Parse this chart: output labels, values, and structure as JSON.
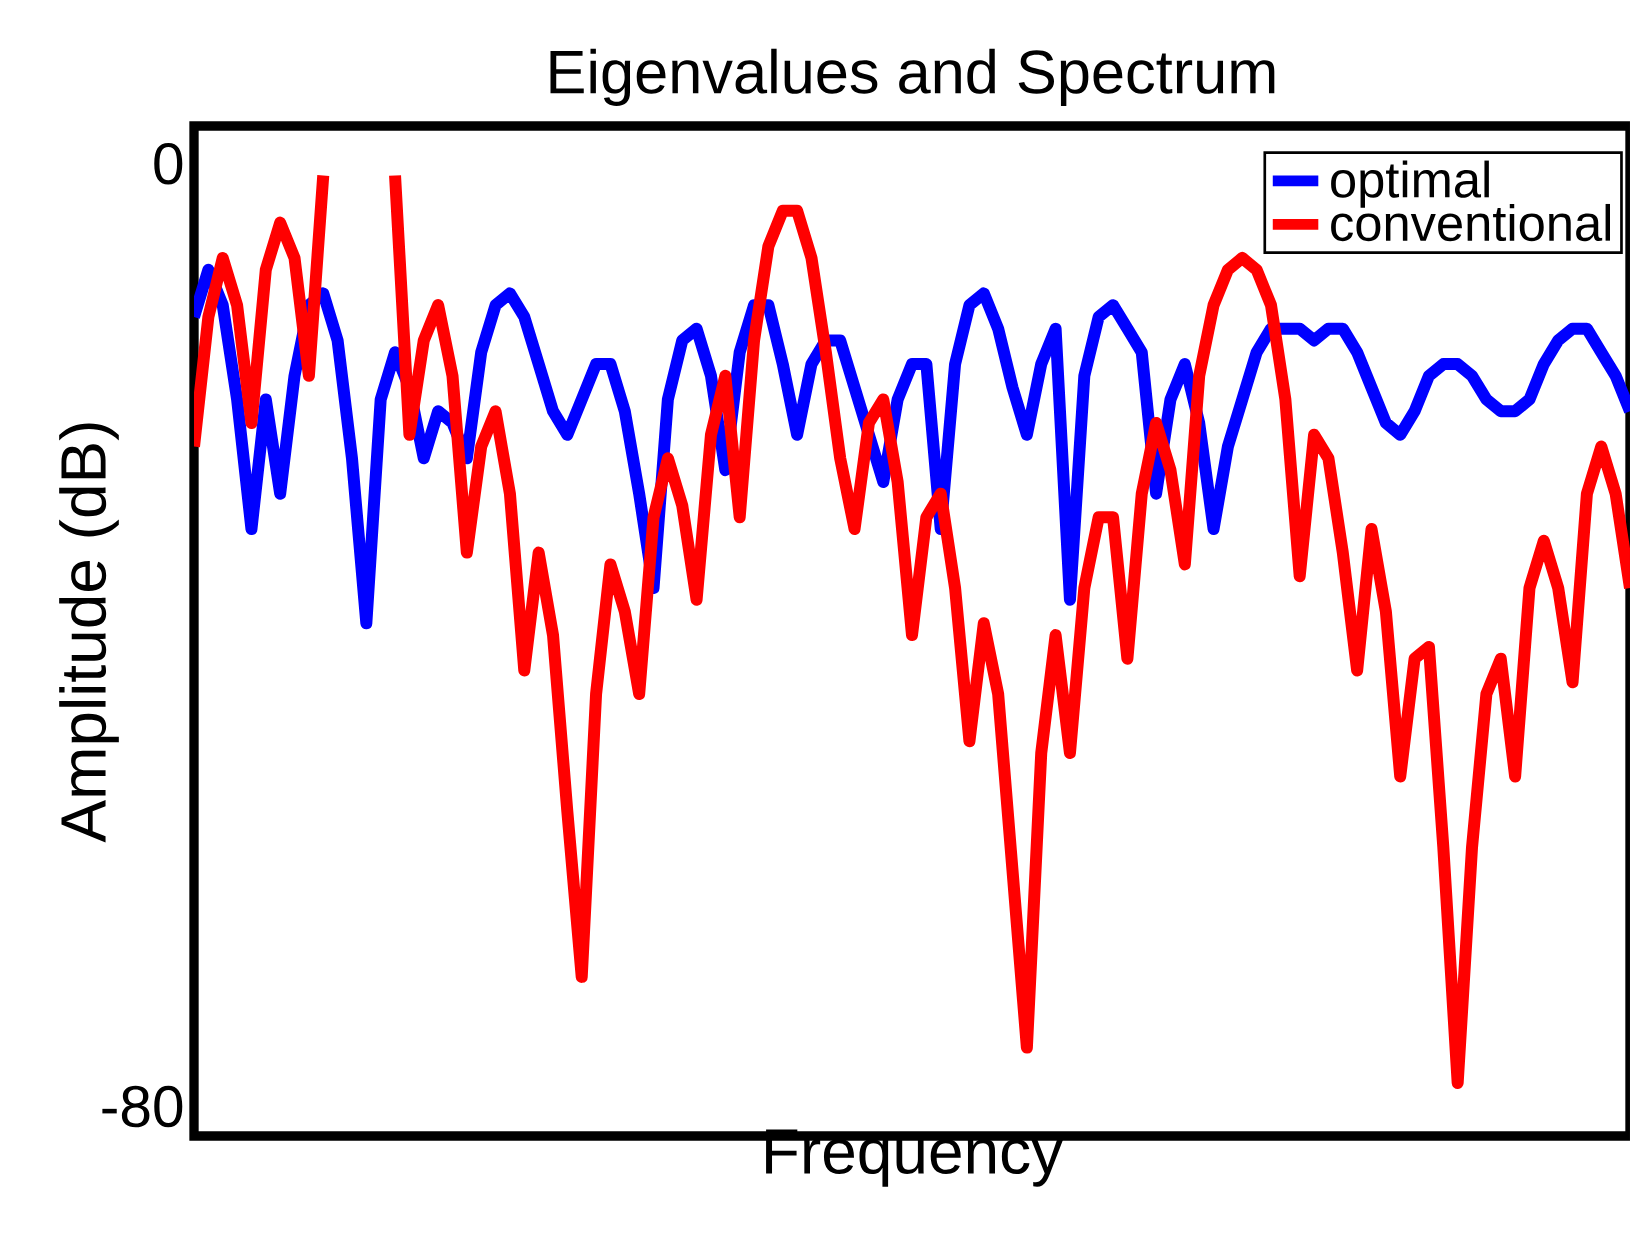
{
  "chart_data": {
    "type": "line",
    "title": "Eigenvalues and Spectrum",
    "xlabel": "Frequency",
    "ylabel": "Amplitude (dB)",
    "categories": [
      null,
      null,
      null,
      null,
      null,
      null,
      null,
      null,
      null,
      null,
      null,
      null,
      null,
      null,
      null,
      null,
      null,
      null,
      null,
      null,
      null,
      null,
      null,
      null,
      null,
      null,
      null,
      null,
      null,
      null,
      null,
      null,
      null,
      null,
      null,
      null,
      null,
      null,
      null,
      null,
      null,
      null,
      null,
      null,
      null,
      null,
      null,
      null,
      null,
      null,
      null,
      null,
      null,
      null,
      null,
      null,
      null,
      null,
      null,
      null,
      null,
      null,
      null,
      null,
      null,
      null,
      null,
      null,
      null,
      null,
      null,
      null,
      null,
      null,
      null,
      null,
      null,
      null,
      null,
      null,
      null,
      null,
      null,
      null,
      null,
      null,
      null,
      null,
      null,
      null,
      null,
      null,
      null,
      null,
      null,
      null,
      null,
      null,
      null,
      null,
      null
    ],
    "ylim": [
      -82.5,
      3.2
    ],
    "yticks": [
      0,
      -80
    ],
    "tick_labels": "y",
    "legend": "top right",
    "series": [
      {
        "name": "optimal",
        "color": "#0000ff",
        "values": [
          -13,
          -9,
          -12,
          -20,
          -31,
          -20,
          -28,
          -18,
          -12,
          -11,
          -15,
          -25,
          -39,
          -20,
          -16,
          -19,
          -25,
          -21,
          -22,
          -25,
          -16,
          -12,
          -11,
          -13,
          -17,
          -21,
          -23,
          -20,
          -17,
          -17,
          -21,
          -28,
          -36,
          -20,
          -15,
          -14,
          -18,
          -26,
          -16,
          -12,
          -12,
          -17,
          -23,
          -17,
          -15,
          -15,
          -19,
          -23,
          -27,
          -20,
          -17,
          -17,
          -31,
          -17,
          -12,
          -11,
          -14,
          -19,
          -23,
          -17,
          -14,
          -37,
          -18,
          -13,
          -12,
          -14,
          -16,
          -28,
          -20,
          -17,
          -22,
          -31,
          -24,
          -20,
          -16,
          -14,
          -14,
          -14,
          -15,
          -14,
          -14,
          -16,
          -19,
          -22,
          -23,
          -21,
          -18,
          -17,
          -17,
          -18,
          -20,
          -21,
          -21,
          -20,
          -17,
          -15,
          -14,
          -14,
          -16,
          -18,
          -21
        ]
      },
      {
        "name": "conventional",
        "color": "#ff0000",
        "values": [
          -24,
          -13,
          -8,
          -12,
          -22,
          -9,
          -5,
          -8,
          -18,
          -1,
          null,
          null,
          null,
          null,
          -1,
          -23,
          -15,
          -12,
          -18,
          -33,
          -24,
          -21,
          -28,
          -43,
          -33,
          -40,
          -55,
          -69,
          -45,
          -34,
          -38,
          -45,
          -30,
          -25,
          -29,
          -37,
          -23,
          -18,
          -30,
          -15,
          -7,
          -4,
          -4,
          -8,
          -16,
          -25,
          -31,
          -22,
          -20,
          -27,
          -40,
          -30,
          -28,
          -36,
          -49,
          -39,
          -45,
          -60,
          -75,
          -50,
          -40,
          -50,
          -36,
          -30,
          -30,
          -42,
          -28,
          -22,
          -26,
          -34,
          -18,
          -12,
          -9,
          -8,
          -9,
          -12,
          -20,
          -35,
          -23,
          -25,
          -33,
          -43,
          -31,
          -38,
          -52,
          -42,
          -41,
          -58,
          -78,
          -58,
          -45,
          -42,
          -52,
          -36,
          -32,
          -36,
          -44,
          -28,
          -24,
          -28,
          -36
        ]
      }
    ]
  }
}
